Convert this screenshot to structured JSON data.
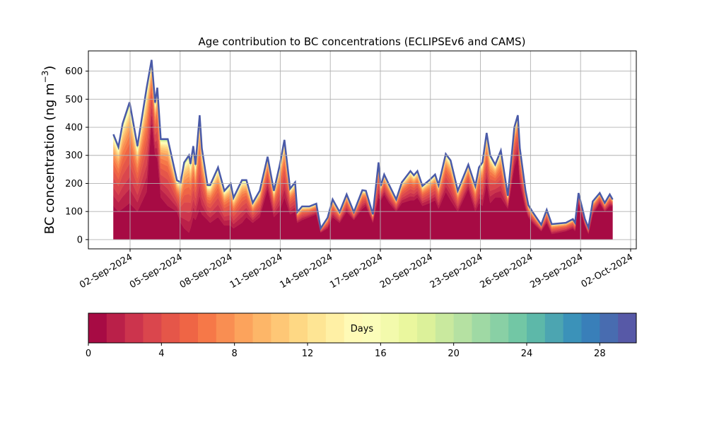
{
  "chart_data": {
    "type": "area",
    "stacked": true,
    "title": "Age contribution to BC concentrations (ECLIPSEv6 and CAMS)",
    "xlabel": "",
    "ylabel": "BC concentration (ng m⁻³)",
    "ylabel_base": "BC concentration (ng m",
    "ylabel_sup": "−3",
    "ylabel_close": ")",
    "x_origin": "2024-09-01T00:00",
    "x_unit": "days since x_origin",
    "xlim": [
      -1.5,
      31.34
    ],
    "ylim": [
      -33,
      672
    ],
    "grid": true,
    "yticks": [
      0,
      100,
      200,
      300,
      400,
      500,
      600
    ],
    "xticks": [
      {
        "value": 1,
        "label": "02-Sep-2024"
      },
      {
        "value": 4,
        "label": "05-Sep-2024"
      },
      {
        "value": 7,
        "label": "08-Sep-2024"
      },
      {
        "value": 10,
        "label": "11-Sep-2024"
      },
      {
        "value": 13,
        "label": "14-Sep-2024"
      },
      {
        "value": 16,
        "label": "17-Sep-2024"
      },
      {
        "value": 19,
        "label": "20-Sep-2024"
      },
      {
        "value": 22,
        "label": "23-Sep-2024"
      },
      {
        "value": 25,
        "label": "26-Sep-2024"
      },
      {
        "value": 28,
        "label": "29-Sep-2024"
      },
      {
        "value": 31,
        "label": "02-Oct-2024"
      }
    ],
    "x": [
      0,
      0.3,
      0.55,
      0.97,
      1.44,
      1.99,
      2.29,
      2.5,
      2.63,
      2.84,
      3.26,
      3.81,
      4.03,
      4.24,
      4.53,
      4.62,
      4.79,
      4.92,
      5.17,
      5.3,
      5.64,
      5.8,
      6.27,
      6.65,
      7.03,
      7.2,
      7.71,
      7.97,
      8.35,
      8.77,
      9.24,
      9.62,
      9.96,
      10.25,
      10.59,
      10.89,
      11.02,
      11.31,
      11.74,
      12.16,
      12.42,
      12.84,
      13.14,
      13.56,
      13.98,
      14.41,
      14.92,
      15.13,
      15.55,
      15.89,
      16.02,
      16.23,
      16.53,
      16.95,
      17.29,
      17.8,
      18.01,
      18.22,
      18.52,
      18.94,
      19.28,
      19.49,
      19.92,
      20.21,
      20.64,
      21.27,
      21.69,
      21.91,
      22.12,
      22.37,
      22.58,
      22.88,
      23.22,
      23.64,
      24.03,
      24.24,
      24.36,
      24.7,
      24.87,
      25.13,
      25.64,
      25.97,
      26.27,
      27.12,
      27.54,
      27.67,
      27.88,
      28.26,
      28.47,
      28.73,
      29.15,
      29.45,
      29.75,
      29.92
    ],
    "total": [
      375,
      330,
      413,
      489,
      333,
      540,
      640,
      488,
      541,
      358,
      358,
      211,
      204,
      275,
      300,
      270,
      333,
      267,
      443,
      325,
      194,
      194,
      257,
      174,
      199,
      149,
      212,
      212,
      131,
      174,
      295,
      174,
      262,
      355,
      181,
      204,
      98,
      118,
      118,
      128,
      40,
      78,
      143,
      98,
      161,
      98,
      176,
      174,
      90,
      275,
      191,
      232,
      194,
      143,
      204,
      244,
      229,
      244,
      191,
      212,
      232,
      194,
      305,
      282,
      174,
      267,
      191,
      257,
      275,
      380,
      300,
      267,
      317,
      156,
      400,
      443,
      325,
      174,
      123,
      98,
      53,
      106,
      55,
      60,
      73,
      60,
      166,
      73,
      43,
      136,
      166,
      131,
      161,
      143
    ],
    "age_0_1_day": [
      120,
      100,
      110,
      130,
      100,
      170,
      420,
      300,
      290,
      150,
      120,
      100,
      60,
      40,
      25,
      40,
      80,
      70,
      110,
      90,
      70,
      60,
      80,
      50,
      50,
      40,
      60,
      80,
      60,
      80,
      180,
      80,
      100,
      150,
      90,
      100,
      60,
      70,
      80,
      90,
      25,
      40,
      80,
      60,
      100,
      70,
      110,
      120,
      60,
      150,
      140,
      160,
      130,
      100,
      130,
      140,
      140,
      150,
      120,
      130,
      140,
      110,
      170,
      140,
      100,
      180,
      100,
      130,
      120,
      200,
      130,
      150,
      150,
      110,
      260,
      300,
      200,
      110,
      80,
      60,
      30,
      60,
      20,
      30,
      40,
      30,
      130,
      50,
      20,
      90,
      130,
      100,
      120,
      120
    ],
    "n_age_bins": 30,
    "colormap": "Spectral",
    "colormap_anchors": [
      "#9e0142",
      "#d53e4f",
      "#f46d43",
      "#fdae61",
      "#fee08b",
      "#ffffbf",
      "#e6f598",
      "#abdda4",
      "#66c2a5",
      "#3288bd",
      "#5e4fa2"
    ],
    "colorbar": {
      "label": "Days",
      "range": [
        0,
        30
      ],
      "ticks": [
        0,
        4,
        8,
        12,
        16,
        20,
        24,
        28
      ],
      "orientation": "horizontal",
      "placement": "bottom"
    }
  }
}
